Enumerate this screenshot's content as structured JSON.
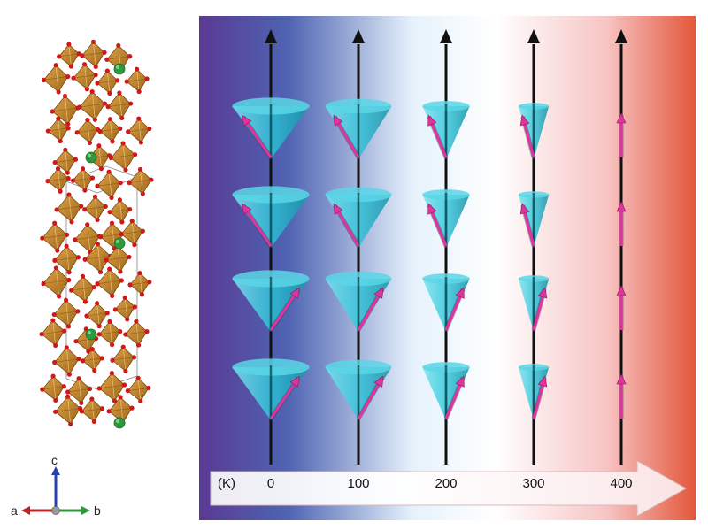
{
  "crystal": {
    "axes": {
      "c": "c",
      "a": "a",
      "b": "b"
    },
    "colors": {
      "polyhedra": "#c98a2c",
      "oxygen": "#d01818",
      "cation": "#2c9a3c"
    }
  },
  "figure": {
    "temperature_unit": "(K)",
    "temperatures": [
      "0",
      "100",
      "200",
      "300",
      "400"
    ],
    "columns": [
      {
        "temperature": "0",
        "cone_opening_deg": 36
      },
      {
        "temperature": "100",
        "cone_opening_deg": 32
      },
      {
        "temperature": "200",
        "cone_opening_deg": 24
      },
      {
        "temperature": "300",
        "cone_opening_deg": 16
      },
      {
        "temperature": "400",
        "cone_opening_deg": 0
      }
    ],
    "gradient_colors": [
      "#5a3a94",
      "#4f64b2",
      "#e6f2fc",
      "#ffffff",
      "#f7c4c4",
      "#e4573a"
    ],
    "cone_color": "#2ec6da",
    "spin_color": "#e0339c"
  }
}
